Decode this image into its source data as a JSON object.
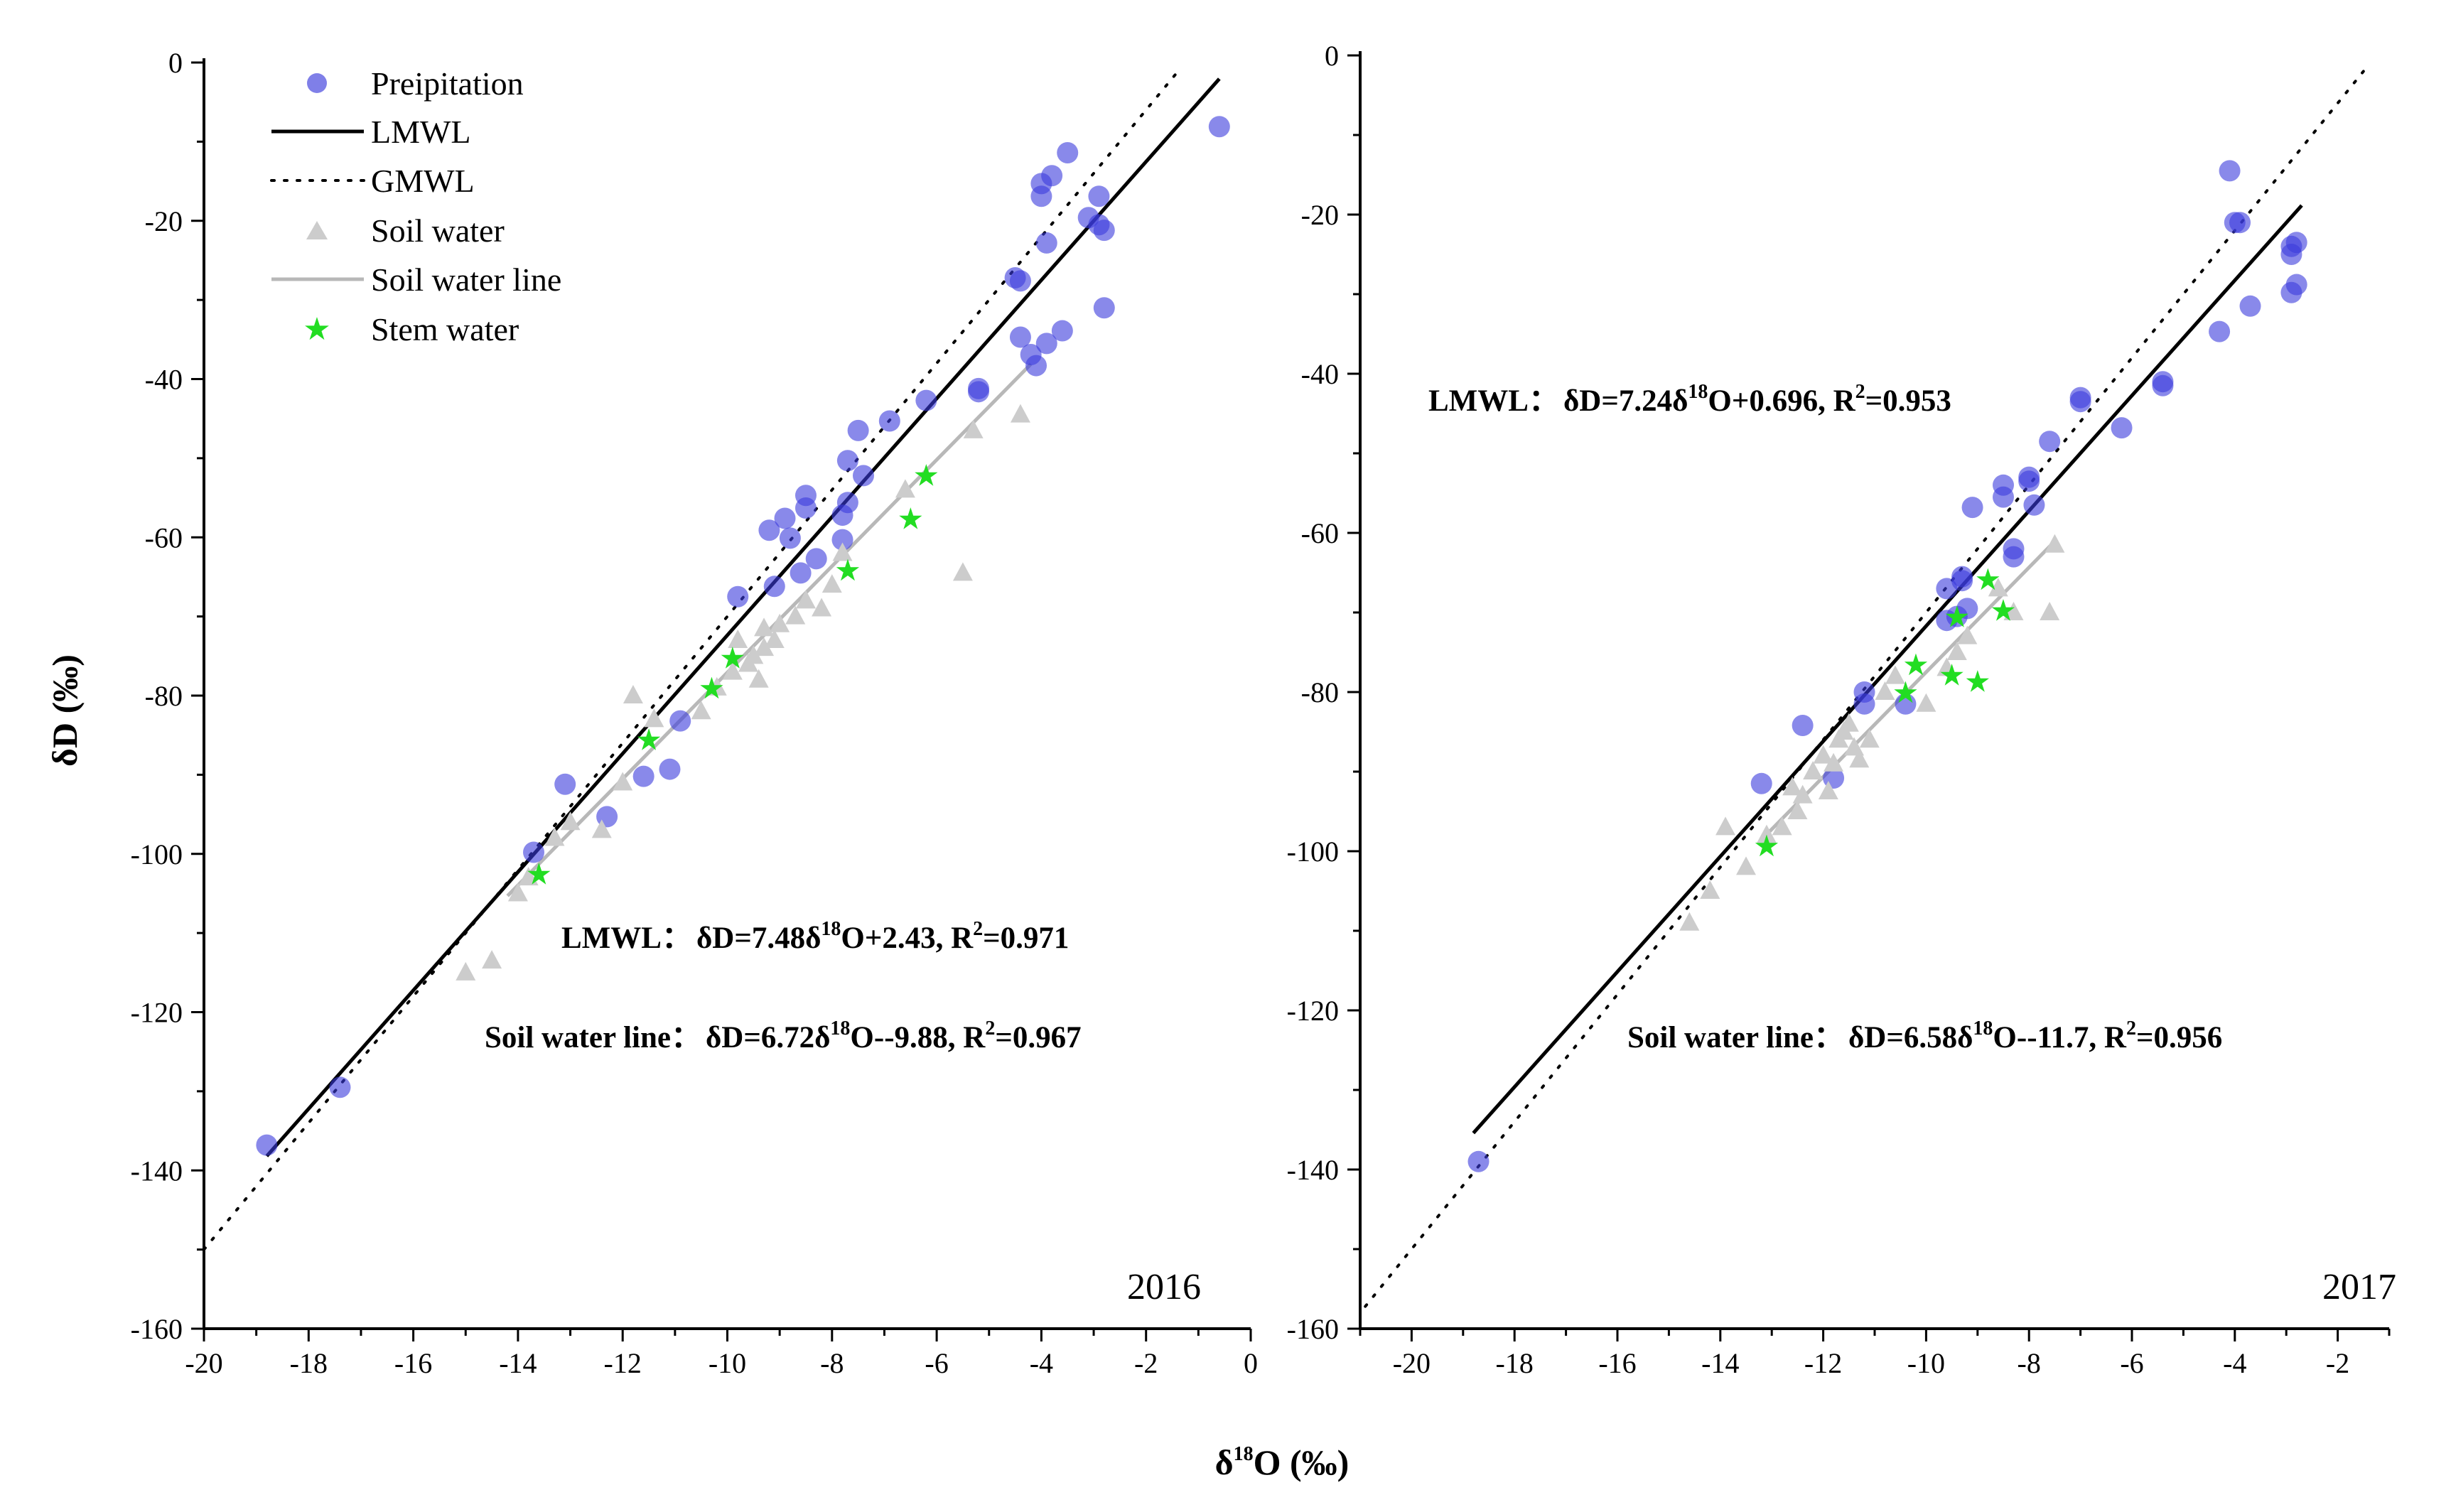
{
  "figure": {
    "ylabel": "δD (‰)",
    "xlabel_prefix": "δ",
    "xlabel_sup": "18",
    "xlabel_suffix": "O (‰)"
  },
  "legend": {
    "precip": "Preipitation",
    "lmwl": "LMWL",
    "gmwl": "GMWL",
    "soil": "Soil water",
    "soilline": "Soil water line",
    "stem": "Stem water"
  },
  "colors": {
    "precip": "#3b3bdc",
    "soil": "#cccccc",
    "stem": "#22dd22",
    "lmwl": "#000000",
    "soilline": "#b8b8b8"
  },
  "panels": [
    {
      "year": "2016",
      "lmwl_label": "LMWL：",
      "lmwl_eq": {
        "a": "δD=7.48δ",
        "sup1": "18",
        "b": "O+2.43, R",
        "sup2": "2",
        "c": "=0.971"
      },
      "soil_label": "Soil water line：",
      "soil_eq": {
        "a": "δD=6.72δ",
        "sup1": "18",
        "b": "O--9.88, R",
        "sup2": "2",
        "c": "=0.967"
      }
    },
    {
      "year": "2017",
      "lmwl_label": "LMWL：",
      "lmwl_eq": {
        "a": "δD=7.24δ",
        "sup1": "18",
        "b": "O+0.696, R",
        "sup2": "2",
        "c": "=0.953"
      },
      "soil_label": "Soil water line：",
      "soil_eq": {
        "a": "δD=6.58δ",
        "sup1": "18",
        "b": "O--11.7, R",
        "sup2": "2",
        "c": "=0.956"
      }
    }
  ],
  "chart_data": [
    {
      "type": "scatter",
      "title": "2016",
      "xlabel": "δ18O (‰)",
      "ylabel": "δD (‰)",
      "xlim": [
        -20,
        0
      ],
      "ylim": [
        -160,
        0
      ],
      "xticks": [
        -20,
        -18,
        -16,
        -14,
        -12,
        -10,
        -8,
        -6,
        -4,
        -2,
        0
      ],
      "yticks": [
        0,
        -20,
        -40,
        -60,
        -80,
        -100,
        -120,
        -140,
        -160
      ],
      "lines": {
        "lmwl": {
          "slope": 7.48,
          "intercept": 2.43,
          "x_range": [
            -18.8,
            -0.6
          ]
        },
        "gmwl": {
          "slope": 8,
          "intercept": 10,
          "x_range": [
            -20,
            -1.4
          ]
        },
        "soilline": {
          "slope": 6.72,
          "intercept": -9.88,
          "x_range": [
            -14.2,
            -4.2
          ]
        }
      },
      "series": [
        {
          "name": "Preipitation",
          "points": [
            [
              -18.8,
              -136.8
            ],
            [
              -17.4,
              -129.5
            ],
            [
              -13.7,
              -99.8
            ],
            [
              -13.1,
              -91.2
            ],
            [
              -12.3,
              -95.3
            ],
            [
              -11.6,
              -90.2
            ],
            [
              -11.1,
              -89.3
            ],
            [
              -10.9,
              -83.2
            ],
            [
              -9.8,
              -67.5
            ],
            [
              -9.1,
              -66.2
            ],
            [
              -9.2,
              -59.1
            ],
            [
              -8.9,
              -57.6
            ],
            [
              -8.8,
              -60.1
            ],
            [
              -8.5,
              -54.7
            ],
            [
              -8.5,
              -56.3
            ],
            [
              -8.3,
              -62.7
            ],
            [
              -8.6,
              -64.5
            ],
            [
              -7.7,
              -55.6
            ],
            [
              -7.7,
              -50.3
            ],
            [
              -7.5,
              -46.5
            ],
            [
              -7.8,
              -60.3
            ],
            [
              -7.8,
              -57.2
            ],
            [
              -7.4,
              -52.2
            ],
            [
              -6.9,
              -45.3
            ],
            [
              -6.2,
              -42.7
            ],
            [
              -5.2,
              -41.2
            ],
            [
              -5.2,
              -41.6
            ],
            [
              -4.5,
              -27.2
            ],
            [
              -4.4,
              -34.7
            ],
            [
              -4.2,
              -36.9
            ],
            [
              -4.1,
              -38.3
            ],
            [
              -3.9,
              -35.5
            ],
            [
              -3.6,
              -33.9
            ],
            [
              -4.0,
              -15.3
            ],
            [
              -4.0,
              -16.9
            ],
            [
              -3.8,
              -14.3
            ],
            [
              -3.5,
              -11.4
            ],
            [
              -3.9,
              -22.8
            ],
            [
              -3.1,
              -19.6
            ],
            [
              -2.9,
              -16.9
            ],
            [
              -2.9,
              -20.5
            ],
            [
              -2.8,
              -21.2
            ],
            [
              -2.8,
              -31.0
            ],
            [
              -0.6,
              -8.1
            ],
            [
              -4.4,
              -27.6
            ]
          ]
        },
        {
          "name": "Soil water",
          "points": [
            [
              -15.0,
              -115.0
            ],
            [
              -14.5,
              -113.5
            ],
            [
              -14.0,
              -105.0
            ],
            [
              -13.8,
              -103.0
            ],
            [
              -13.3,
              -98.0
            ],
            [
              -12.4,
              -97.0
            ],
            [
              -11.8,
              -80.0
            ],
            [
              -11.4,
              -83.0
            ],
            [
              -10.2,
              -79.0
            ],
            [
              -9.9,
              -77.0
            ],
            [
              -9.6,
              -76.0
            ],
            [
              -9.3,
              -74.0
            ],
            [
              -9.1,
              -73.0
            ],
            [
              -9.0,
              -71.0
            ],
            [
              -8.7,
              -70.0
            ],
            [
              -8.5,
              -68.0
            ],
            [
              -8.2,
              -69.0
            ],
            [
              -9.8,
              -73.0
            ],
            [
              -9.5,
              -75.0
            ],
            [
              -9.4,
              -78.0
            ],
            [
              -9.3,
              -71.5
            ],
            [
              -6.6,
              -54.0
            ],
            [
              -5.5,
              -64.5
            ],
            [
              -5.3,
              -46.5
            ],
            [
              -4.4,
              -44.5
            ],
            [
              -7.8,
              -62.0
            ],
            [
              -8.0,
              -66.0
            ],
            [
              -10.5,
              -82.0
            ],
            [
              -12.0,
              -91.0
            ],
            [
              -13.0,
              -96.0
            ]
          ]
        },
        {
          "name": "Stem water",
          "points": [
            [
              -13.6,
              -102.5
            ],
            [
              -11.5,
              -85.5
            ],
            [
              -10.3,
              -79.0
            ],
            [
              -9.9,
              -75.2
            ],
            [
              -7.7,
              -64.1
            ],
            [
              -6.5,
              -57.6
            ],
            [
              -6.2,
              -52.1
            ]
          ]
        }
      ]
    },
    {
      "type": "scatter",
      "title": "2017",
      "xlabel": "δ18O (‰)",
      "ylabel": "δD (‰)",
      "xlim": [
        -21,
        -1
      ],
      "ylim": [
        -160,
        0
      ],
      "xticks": [
        -20,
        -18,
        -16,
        -14,
        -12,
        -10,
        -8,
        -6,
        -4,
        -2
      ],
      "yticks": [
        0,
        -20,
        -40,
        -60,
        -80,
        -100,
        -120,
        -140,
        -160
      ],
      "lines": {
        "lmwl": {
          "slope": 7.24,
          "intercept": 0.696,
          "x_range": [
            -18.8,
            -2.7
          ]
        },
        "gmwl": {
          "slope": 8,
          "intercept": 10,
          "x_range": [
            -20.9,
            -1.5
          ]
        },
        "soilline": {
          "slope": 6.58,
          "intercept": -11.7,
          "x_range": [
            -13.2,
            -7.5
          ]
        }
      },
      "series": [
        {
          "name": "Preipitation",
          "points": [
            [
              -18.7,
              -139.0
            ],
            [
              -13.2,
              -91.5
            ],
            [
              -12.4,
              -84.2
            ],
            [
              -11.8,
              -90.8
            ],
            [
              -11.2,
              -80.0
            ],
            [
              -11.2,
              -81.5
            ],
            [
              -10.4,
              -81.5
            ],
            [
              -9.6,
              -67.0
            ],
            [
              -9.6,
              -71.0
            ],
            [
              -9.4,
              -70.5
            ],
            [
              -9.2,
              -69.5
            ],
            [
              -9.3,
              -65.5
            ],
            [
              -9.3,
              -66.0
            ],
            [
              -9.1,
              -56.8
            ],
            [
              -8.5,
              -54.0
            ],
            [
              -8.5,
              -55.5
            ],
            [
              -8.3,
              -62.0
            ],
            [
              -8.3,
              -63.0
            ],
            [
              -8.0,
              -53.5
            ],
            [
              -7.9,
              -56.5
            ],
            [
              -7.6,
              -48.5
            ],
            [
              -7.0,
              -43.0
            ],
            [
              -7.0,
              -43.5
            ],
            [
              -6.2,
              -46.8
            ],
            [
              -5.4,
              -41.0
            ],
            [
              -5.4,
              -41.5
            ],
            [
              -4.3,
              -34.7
            ],
            [
              -4.1,
              -14.5
            ],
            [
              -4.0,
              -21.0
            ],
            [
              -3.9,
              -21.0
            ],
            [
              -3.7,
              -31.5
            ],
            [
              -2.9,
              -24.0
            ],
            [
              -2.9,
              -25.0
            ],
            [
              -2.8,
              -23.5
            ],
            [
              -2.8,
              -28.8
            ],
            [
              -2.9,
              -29.8
            ],
            [
              -8.0,
              -53.0
            ]
          ]
        },
        {
          "name": "Soil water",
          "points": [
            [
              -14.6,
              -109.0
            ],
            [
              -14.2,
              -105.0
            ],
            [
              -13.9,
              -97.0
            ],
            [
              -13.5,
              -102.0
            ],
            [
              -13.1,
              -98.0
            ],
            [
              -12.8,
              -97.0
            ],
            [
              -12.5,
              -95.0
            ],
            [
              -12.4,
              -93.0
            ],
            [
              -12.2,
              -90.0
            ],
            [
              -12.0,
              -88.0
            ],
            [
              -11.8,
              -89.0
            ],
            [
              -11.7,
              -86.0
            ],
            [
              -11.6,
              -85.0
            ],
            [
              -11.5,
              -84.0
            ],
            [
              -11.4,
              -87.0
            ],
            [
              -11.3,
              -88.5
            ],
            [
              -11.1,
              -86.0
            ],
            [
              -10.8,
              -80.0
            ],
            [
              -10.6,
              -78.0
            ],
            [
              -10.0,
              -81.5
            ],
            [
              -9.6,
              -77.0
            ],
            [
              -9.4,
              -75.0
            ],
            [
              -9.2,
              -73.0
            ],
            [
              -8.6,
              -67.0
            ],
            [
              -8.3,
              -70.0
            ],
            [
              -7.6,
              -70.0
            ],
            [
              -7.5,
              -61.5
            ],
            [
              -12.6,
              -92.0
            ],
            [
              -11.9,
              -92.5
            ]
          ]
        },
        {
          "name": "Stem water",
          "points": [
            [
              -13.1,
              -99.3
            ],
            [
              -10.4,
              -80.0
            ],
            [
              -10.2,
              -76.5
            ],
            [
              -9.5,
              -77.8
            ],
            [
              -9.4,
              -70.5
            ],
            [
              -9.0,
              -78.6
            ],
            [
              -8.8,
              -65.8
            ],
            [
              -8.5,
              -69.7
            ]
          ]
        }
      ]
    }
  ]
}
